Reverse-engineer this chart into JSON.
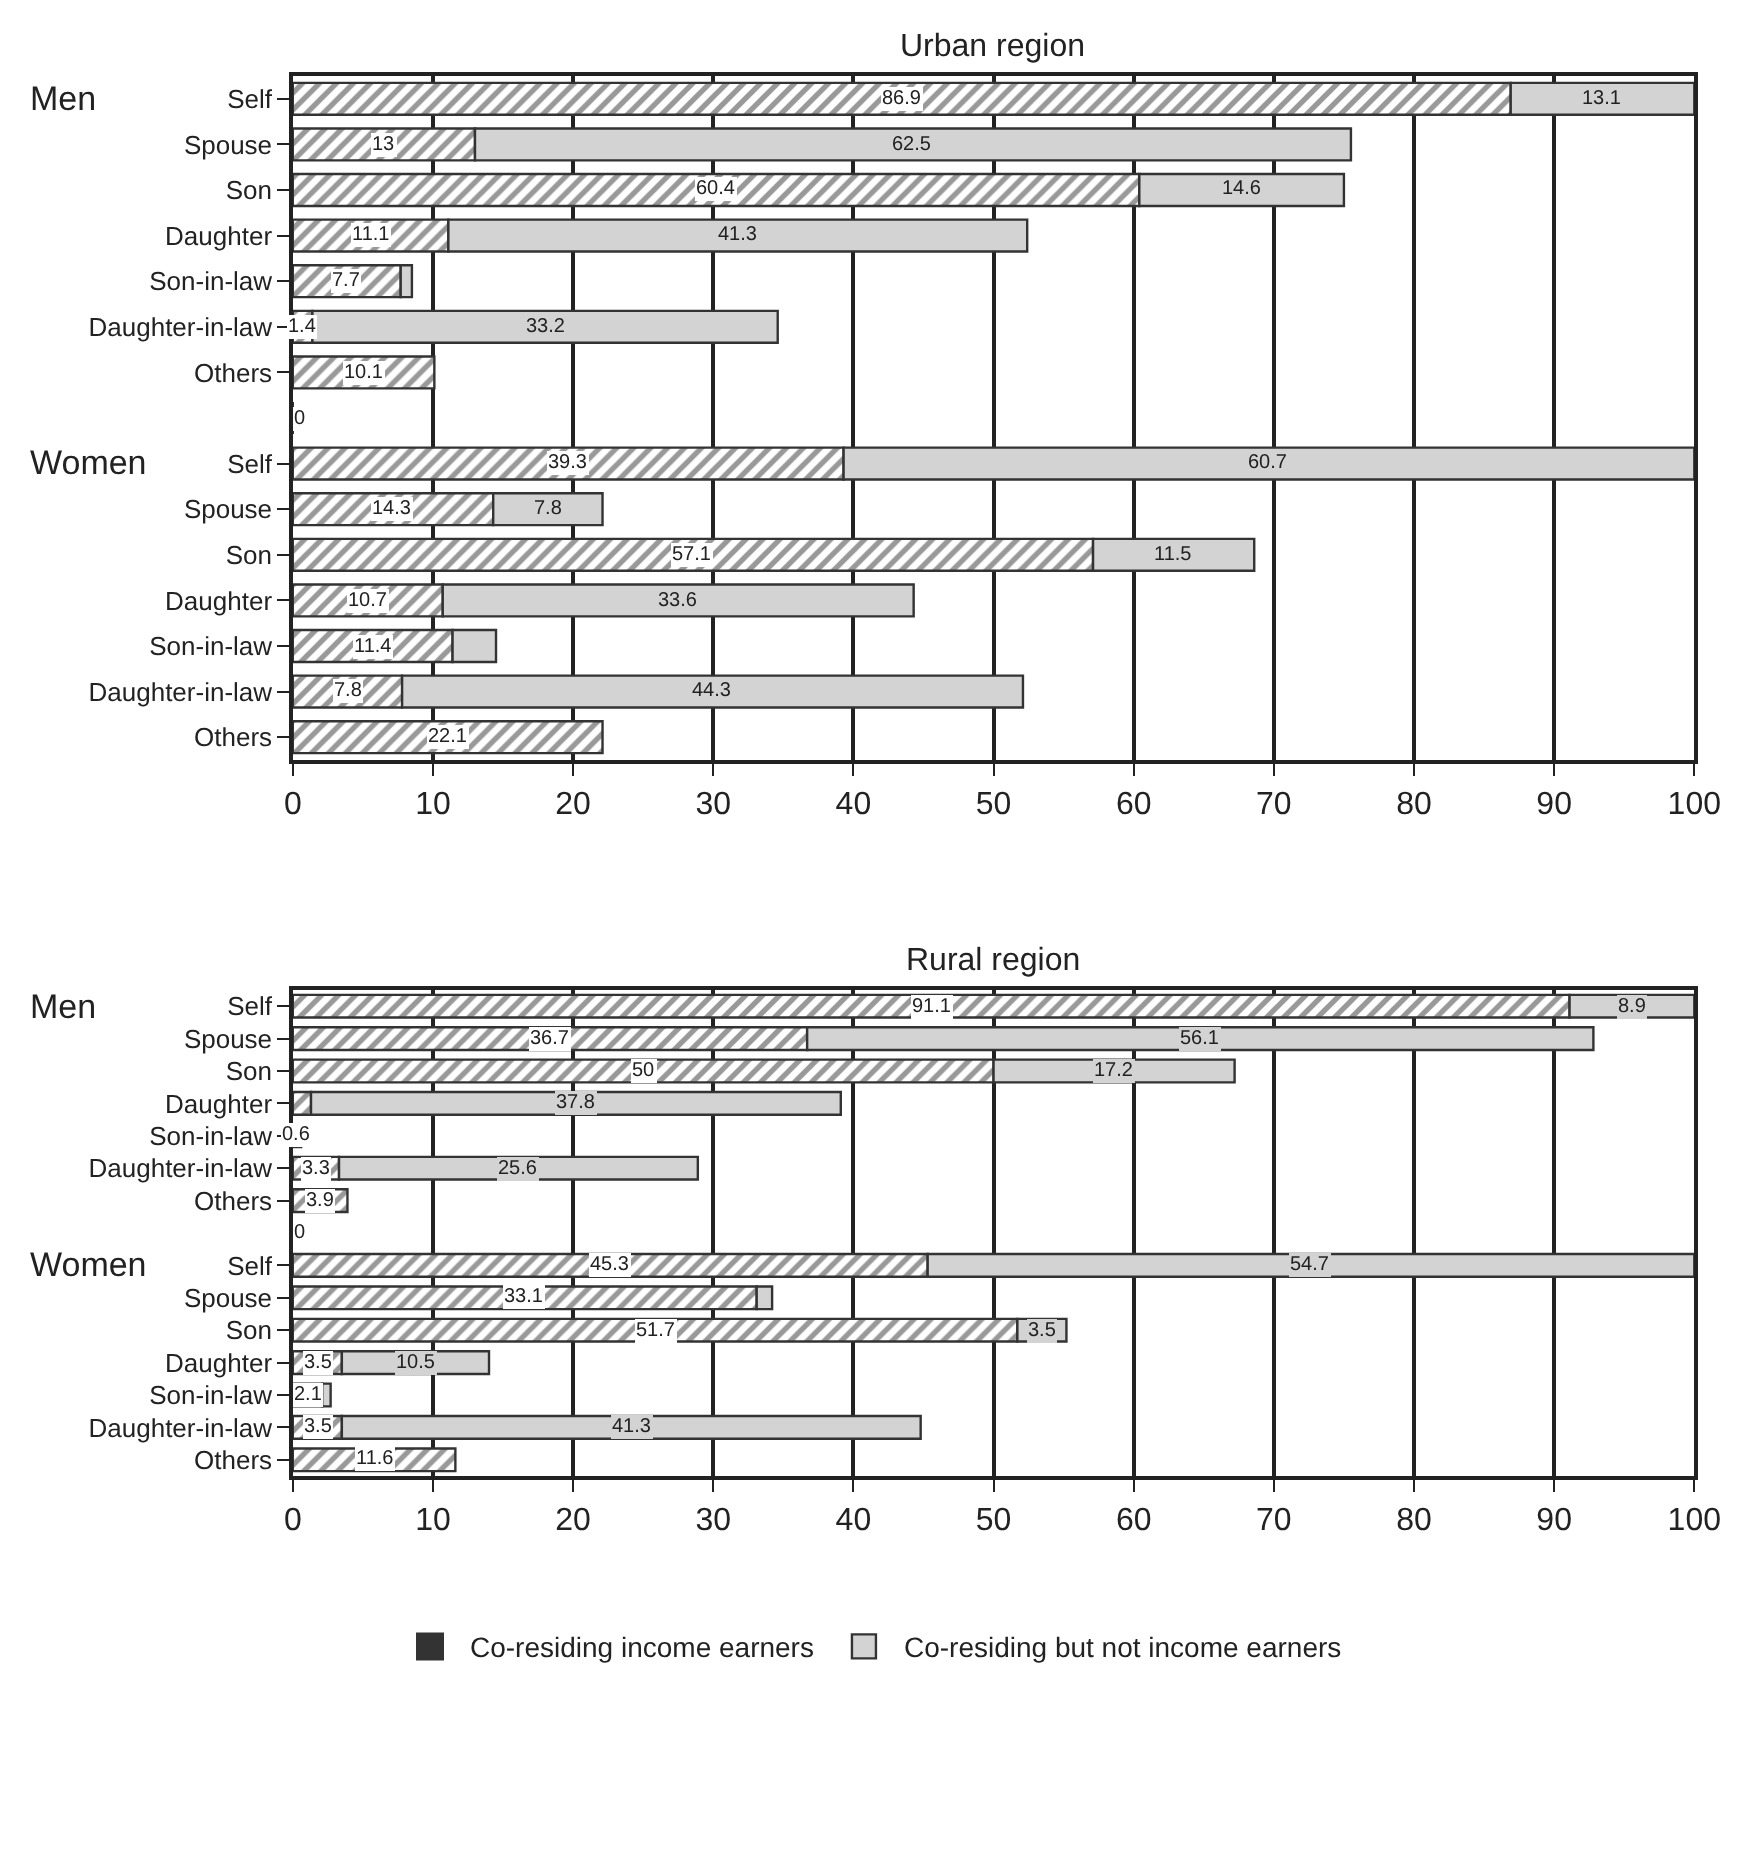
{
  "chart_data": [
    {
      "type": "bar",
      "orientation": "horizontal",
      "stacked": true,
      "title": "Urban region",
      "categories": [
        "Self",
        "Spouse",
        "Son",
        "Daughter",
        "Son-in-law",
        "Daughter-in-law",
        "Others",
        null,
        "Self",
        "Spouse",
        "Son",
        "Daughter",
        "Son-in-law",
        "Daughter-in-law",
        "Others"
      ],
      "series": [
        {
          "name": "Co-residing income earners",
          "color": "#333333",
          "values": [
            86.9,
            13,
            60.4,
            11.1,
            7.7,
            1.4,
            10.1,
            0,
            39.3,
            14.3,
            57.1,
            10.7,
            11.4,
            7.8,
            22.1
          ],
          "value_labels": [
            "86.9",
            "13",
            "60.4",
            "11.1",
            "7.7",
            "1.4",
            "10.1",
            "0",
            "39.3",
            "14.3",
            "57.1",
            "10.7",
            "11.4",
            "7.8",
            "22.1"
          ]
        },
        {
          "name": "Co-residing but not income earners",
          "color": "#d3d3d3",
          "values": [
            13.1,
            62.5,
            14.6,
            41.3,
            0.8,
            33.2,
            null,
            null,
            60.7,
            7.8,
            11.5,
            33.6,
            3.1,
            44.3,
            null
          ],
          "value_labels": [
            "13.1",
            "62.5",
            "14.6",
            "41.3",
            null,
            "33.2",
            null,
            null,
            "60.7",
            "7.8",
            "11.5",
            "33.6",
            null,
            "44.3",
            null
          ]
        }
      ],
      "annotations": [
        "Men",
        "Women"
      ],
      "xlim": [
        0,
        100
      ],
      "xticks": [
        0,
        10,
        20,
        30,
        40,
        50,
        60,
        70,
        80,
        90,
        100
      ],
      "grid": "x",
      "legend": "bottom"
    },
    {
      "type": "bar",
      "orientation": "horizontal",
      "stacked": true,
      "title": "Rural region",
      "categories": [
        "Self",
        "Spouse",
        "Son",
        "Daughter",
        "Son-in-law",
        "Daughter-in-law",
        "Others",
        null,
        "Self",
        "Spouse",
        "Son",
        "Daughter",
        "Son-in-law",
        "Daughter-in-law",
        "Others"
      ],
      "series": [
        {
          "color": "#333333",
          "values": [
            91.1,
            36.7,
            50,
            1.3,
            0.6,
            3.3,
            3.9,
            0,
            45.3,
            33.1,
            51.7,
            3.5,
            2.1,
            3.5,
            11.6
          ],
          "value_labels": [
            "91.1",
            "36.7",
            "50",
            null,
            "0.6",
            "3.3",
            "3.9",
            "0",
            "45.3",
            "33.1",
            "51.7",
            "3.5",
            "2.1",
            "3.5",
            "11.6"
          ]
        },
        {
          "color": "#d3d3d3",
          "values": [
            8.9,
            56.1,
            17.2,
            37.8,
            null,
            25.6,
            null,
            null,
            54.7,
            1.1,
            3.5,
            10.5,
            0.6,
            41.3,
            null
          ],
          "value_labels": [
            "8.9",
            "56.1",
            "17.2",
            "37.8",
            null,
            "25.6",
            null,
            null,
            "54.7",
            null,
            "3.5",
            "10.5",
            null,
            "41.3",
            null
          ]
        }
      ],
      "annotations": [
        "Men",
        "Women"
      ],
      "xlim": [
        0,
        100
      ],
      "xticks": [
        0,
        10,
        20,
        30,
        40,
        50,
        60,
        70,
        80,
        90,
        100
      ],
      "grid": "x"
    }
  ]
}
